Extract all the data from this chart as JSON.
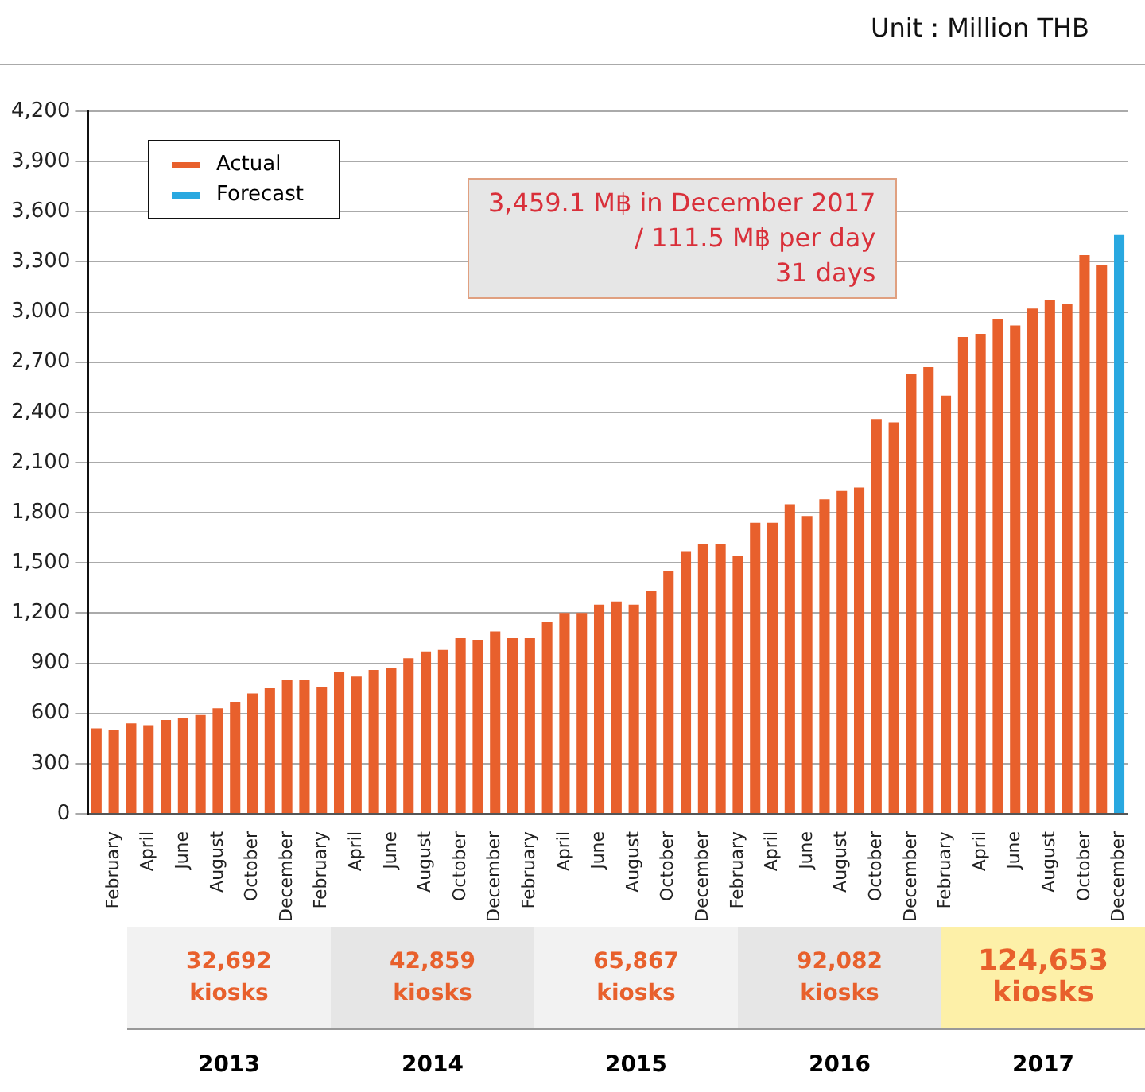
{
  "chart_data": {
    "type": "bar",
    "stacked": true,
    "categories": [
      null,
      "February",
      null,
      "April",
      null,
      "June",
      null,
      "August",
      null,
      "October",
      null,
      "December",
      null,
      "February",
      null,
      "April",
      null,
      "June",
      null,
      "August",
      null,
      "October",
      null,
      "December",
      null,
      "February",
      null,
      "April",
      null,
      "June",
      null,
      "August",
      null,
      "October",
      null,
      "December",
      null,
      "February",
      null,
      "April",
      null,
      "June",
      null,
      "August",
      null,
      "October",
      null,
      "December",
      null,
      "February",
      null,
      "April",
      null,
      "June",
      null,
      "August",
      null,
      "October",
      null,
      "December"
    ],
    "series": [
      {
        "name": "Actual",
        "color": "#e8602c",
        "values": [
          510,
          500,
          540,
          530,
          560,
          570,
          590,
          630,
          670,
          720,
          750,
          800,
          800,
          760,
          850,
          820,
          860,
          870,
          930,
          970,
          980,
          1050,
          1040,
          1090,
          1050,
          1050,
          1150,
          1200,
          1200,
          1250,
          1270,
          1250,
          1330,
          1450,
          1570,
          1610,
          1610,
          1540,
          1740,
          1740,
          1850,
          1780,
          1880,
          1930,
          1950,
          2360,
          2340,
          2630,
          2670,
          2500,
          2850,
          2870,
          2960,
          2920,
          3020,
          3070,
          3050,
          3340,
          3280,
          null
        ]
      },
      {
        "name": "Forecast",
        "color": "#29a8e0",
        "values": [
          null,
          null,
          null,
          null,
          null,
          null,
          null,
          null,
          null,
          null,
          null,
          null,
          null,
          null,
          null,
          null,
          null,
          null,
          null,
          null,
          null,
          null,
          null,
          null,
          null,
          null,
          null,
          null,
          null,
          null,
          null,
          null,
          null,
          null,
          null,
          null,
          null,
          null,
          null,
          null,
          null,
          null,
          null,
          null,
          null,
          null,
          null,
          null,
          null,
          null,
          null,
          null,
          null,
          null,
          null,
          null,
          null,
          null,
          null,
          3460
        ]
      }
    ],
    "ylim": [
      0,
      4200
    ],
    "yticks": [
      0,
      300,
      600,
      900,
      {
        "value": 1200,
        "label": "1,200"
      },
      {
        "value": 1500,
        "label": "1,500"
      },
      {
        "value": 1800,
        "label": "1,800"
      },
      {
        "value": 2100,
        "label": "2,100"
      },
      {
        "value": 2400,
        "label": "2,400"
      },
      {
        "value": 2700,
        "label": "2,700"
      },
      {
        "value": 3000,
        "label": "3,000"
      },
      {
        "value": 3300,
        "label": "3,300"
      },
      {
        "value": 3600,
        "label": "3,600"
      },
      {
        "value": 3900,
        "label": "3,900"
      },
      {
        "value": 4200,
        "label": "4,200"
      }
    ],
    "grid": "y",
    "legend": "top left",
    "annotations": [
      "Unit : Million THB",
      "3,459.1 M฿ in December 2017\n/ 111.5 M฿ per day\n31 days",
      "32,692\nkiosks",
      "42,859\nkiosks",
      "65,867\nkiosks",
      "92,082\nkiosks",
      "124,653\nkiosks",
      "2013",
      "2014",
      "2015",
      "2016",
      "2017"
    ]
  }
}
